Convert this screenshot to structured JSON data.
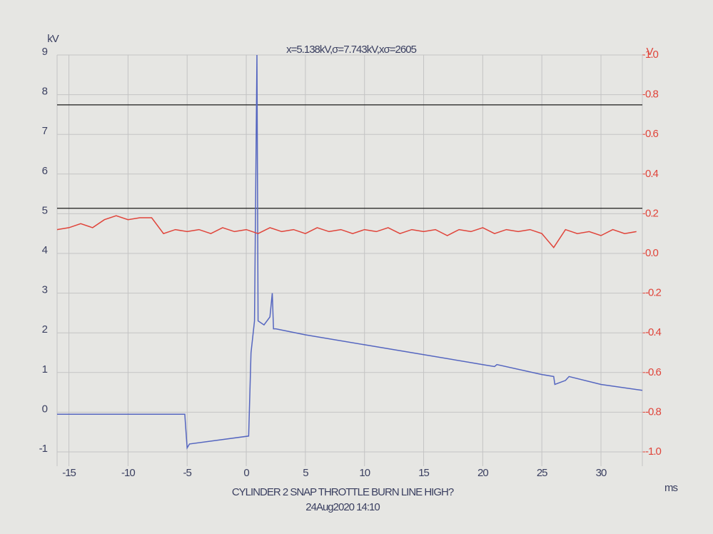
{
  "chart_data": {
    "type": "line",
    "title": "x=5.138kV,σ=7.743kV,xσ=2605",
    "y_label": "kV",
    "y2_label": "V",
    "x_label": "ms",
    "caption": "CYLINDER 2 SNAP THROTTLE BURN LINE HIGH?",
    "timestamp": "24Aug2020 14:10",
    "xlim": [
      -16,
      33.5
    ],
    "xticks": [
      -15,
      -10,
      -5,
      0,
      5,
      10,
      15,
      20,
      25,
      30
    ],
    "ylim": [
      -1,
      9
    ],
    "yticks": [
      -1,
      0,
      1,
      2,
      3,
      4,
      5,
      6,
      7,
      8,
      9
    ],
    "y2lim": [
      -1,
      1
    ],
    "y2ticks": [
      {
        "value": -1,
        "label": "-1.0"
      },
      -0.8,
      -0.6,
      -0.4,
      -0.2,
      {
        "value": 0,
        "label": "0.0"
      },
      0.2,
      0.4,
      0.6,
      0.8,
      {
        "value": 1,
        "label": "1.0"
      }
    ],
    "grid": true,
    "cursors": [
      7.743,
      5.138
    ],
    "cursor_color": "#1a1a1a",
    "series": [
      {
        "color": "#5566c0",
        "x": [
          -16,
          -5.2,
          -5,
          -4.8,
          0.2,
          0.4,
          0.7,
          0.9,
          1.0,
          1.5,
          2.0,
          2.2,
          2.3,
          2.5,
          5,
          10,
          15,
          20,
          21,
          21.2,
          25,
          26,
          26.1,
          27,
          27.3,
          30,
          33.5
        ],
        "values": [
          -0.05,
          -0.05,
          -0.9,
          -0.8,
          -0.6,
          1.5,
          2.3,
          9,
          2.3,
          2.2,
          2.4,
          3.0,
          2.1,
          2.1,
          1.95,
          1.7,
          1.45,
          1.2,
          1.15,
          1.2,
          0.95,
          0.9,
          0.7,
          0.8,
          0.9,
          0.7,
          0.55
        ]
      },
      {
        "color": "#e0443a",
        "axis": "y2",
        "x": [
          -16,
          -15,
          -14,
          -13,
          -12,
          -11,
          -10,
          -9,
          -8,
          -7,
          -6,
          -5,
          -4,
          -3,
          -2,
          -1,
          0,
          1,
          2,
          3,
          4,
          5,
          6,
          7,
          8,
          9,
          10,
          11,
          12,
          13,
          14,
          15,
          16,
          17,
          18,
          19,
          20,
          21,
          22,
          23,
          24,
          25,
          26,
          27,
          28,
          29,
          30,
          31,
          32,
          33
        ],
        "values": [
          0.12,
          0.13,
          0.15,
          0.13,
          0.17,
          0.19,
          0.17,
          0.18,
          0.18,
          0.1,
          0.12,
          0.11,
          0.12,
          0.1,
          0.13,
          0.11,
          0.12,
          0.1,
          0.13,
          0.11,
          0.12,
          0.1,
          0.13,
          0.11,
          0.12,
          0.1,
          0.12,
          0.11,
          0.13,
          0.1,
          0.12,
          0.11,
          0.12,
          0.09,
          0.12,
          0.11,
          0.13,
          0.1,
          0.12,
          0.11,
          0.12,
          0.1,
          0.03,
          0.12,
          0.1,
          0.11,
          0.09,
          0.12,
          0.1,
          0.11
        ]
      }
    ]
  }
}
